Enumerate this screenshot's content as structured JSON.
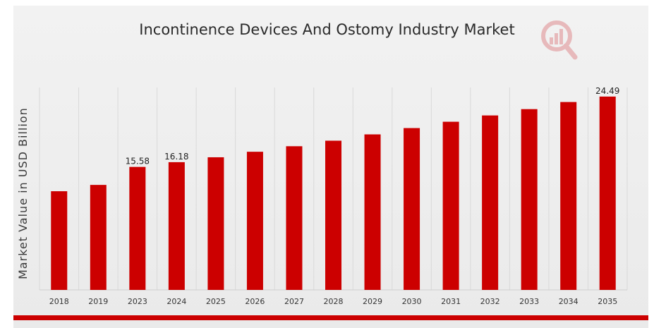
{
  "chart_data": {
    "type": "bar",
    "title": "Incontinence Devices And Ostomy Industry Market",
    "xlabel": "",
    "ylabel": "Market Value in USD Billion",
    "categories": [
      "2018",
      "2019",
      "2023",
      "2024",
      "2025",
      "2026",
      "2027",
      "2028",
      "2029",
      "2030",
      "2031",
      "2032",
      "2033",
      "2034",
      "2035"
    ],
    "values": [
      12.5,
      13.3,
      15.58,
      16.18,
      16.8,
      17.5,
      18.2,
      18.9,
      19.7,
      20.5,
      21.3,
      22.1,
      22.9,
      23.8,
      24.49
    ],
    "data_labels": {
      "2023": "15.58",
      "2024": "16.18",
      "2035": "24.49"
    },
    "ylim": [
      0,
      26
    ],
    "grid": true,
    "bar_color": "#cc0000",
    "brand_color": "#cc0000"
  }
}
